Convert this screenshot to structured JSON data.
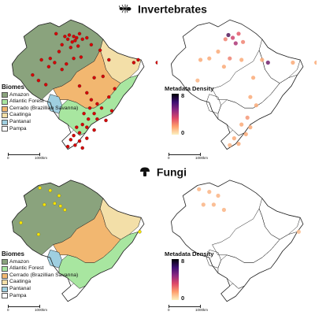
{
  "panels": [
    {
      "title": "Invertebrates",
      "icon": "ant-icon"
    },
    {
      "title": "Fungi",
      "icon": "mushroom-icon"
    }
  ],
  "biome_legend": {
    "title": "Biomes",
    "items": [
      {
        "label": "Amazon",
        "color": "#8aa37d"
      },
      {
        "label": "Atlantic Forest",
        "color": "#a8e6a0"
      },
      {
        "label": "Cerrado (Brazillian Savanna)",
        "color": "#f2b770"
      },
      {
        "label": "Caatinga",
        "color": "#f3dfa8"
      },
      {
        "label": "Pantanal",
        "color": "#9fcfe0"
      },
      {
        "label": "Pampa",
        "color": "#ffffff"
      }
    ]
  },
  "density_legend": {
    "title": "Metadata Density",
    "max": "8",
    "min": "0"
  },
  "scale_label": "1000km",
  "scale_zero": "0",
  "colors": {
    "point": "#d40000",
    "fungi_point": "#f5e400",
    "outline": "#222222"
  },
  "invertebrate_points": [
    [
      0.43,
      0.13
    ],
    [
      0.46,
      0.14
    ],
    [
      0.48,
      0.15
    ],
    [
      0.5,
      0.12
    ],
    [
      0.42,
      0.16
    ],
    [
      0.45,
      0.18
    ],
    [
      0.47,
      0.17
    ],
    [
      0.4,
      0.14
    ],
    [
      0.52,
      0.16
    ],
    [
      0.55,
      0.15
    ],
    [
      0.38,
      0.2
    ],
    [
      0.44,
      0.22
    ],
    [
      0.49,
      0.21
    ],
    [
      0.36,
      0.25
    ],
    [
      0.3,
      0.3
    ],
    [
      0.24,
      0.31
    ],
    [
      0.29,
      0.36
    ],
    [
      0.33,
      0.33
    ],
    [
      0.38,
      0.38
    ],
    [
      0.41,
      0.34
    ],
    [
      0.46,
      0.3
    ],
    [
      0.51,
      0.29
    ],
    [
      0.18,
      0.42
    ],
    [
      0.22,
      0.46
    ],
    [
      0.27,
      0.49
    ],
    [
      0.6,
      0.44
    ],
    [
      0.66,
      0.43
    ],
    [
      0.7,
      0.31
    ],
    [
      0.87,
      0.33
    ],
    [
      0.9,
      0.31
    ],
    [
      0.5,
      0.5
    ],
    [
      0.55,
      0.55
    ],
    [
      0.58,
      0.6
    ],
    [
      0.62,
      0.63
    ],
    [
      0.65,
      0.66
    ],
    [
      0.6,
      0.7
    ],
    [
      0.56,
      0.74
    ],
    [
      0.62,
      0.74
    ],
    [
      0.52,
      0.78
    ],
    [
      0.55,
      0.8
    ],
    [
      0.6,
      0.82
    ],
    [
      0.5,
      0.84
    ],
    [
      0.46,
      0.86
    ],
    [
      0.44,
      0.89
    ],
    [
      0.5,
      0.9
    ],
    [
      0.55,
      0.88
    ],
    [
      0.47,
      0.93
    ],
    [
      0.52,
      0.95
    ],
    [
      0.42,
      0.94
    ],
    [
      0.7,
      0.58
    ],
    [
      0.74,
      0.52
    ],
    [
      0.68,
      0.75
    ],
    [
      0.72,
      0.68
    ],
    [
      0.57,
      0.66
    ],
    [
      0.53,
      0.7
    ],
    [
      0.48,
      0.8
    ],
    [
      1.03,
      0.33
    ],
    [
      0.34,
      0.12
    ],
    [
      0.58,
      0.2
    ],
    [
      0.64,
      0.24
    ]
  ],
  "invertebrate_density": [
    [
      0.43,
      0.13,
      0.9
    ],
    [
      0.46,
      0.15,
      0.6
    ],
    [
      0.5,
      0.12,
      0.5
    ],
    [
      0.41,
      0.16,
      0.4
    ],
    [
      0.48,
      0.19,
      0.7
    ],
    [
      0.53,
      0.18,
      0.4
    ],
    [
      0.36,
      0.25,
      0.3
    ],
    [
      0.3,
      0.3,
      0.3
    ],
    [
      0.24,
      0.31,
      0.3
    ],
    [
      0.4,
      0.36,
      0.3
    ],
    [
      0.44,
      0.3,
      0.4
    ],
    [
      0.52,
      0.31,
      0.3
    ],
    [
      0.7,
      0.33,
      0.85
    ],
    [
      0.66,
      0.31,
      0.3
    ],
    [
      0.6,
      0.44,
      0.3
    ],
    [
      0.58,
      0.58,
      0.3
    ],
    [
      0.62,
      0.64,
      0.3
    ],
    [
      0.56,
      0.73,
      0.35
    ],
    [
      0.52,
      0.78,
      0.3
    ],
    [
      0.55,
      0.85,
      0.3
    ],
    [
      0.47,
      0.88,
      0.3
    ],
    [
      0.5,
      0.92,
      0.3
    ],
    [
      0.22,
      0.46,
      0.25
    ],
    [
      0.87,
      0.33,
      0.3
    ],
    [
      1.03,
      0.33,
      0.3
    ],
    [
      0.58,
      0.8,
      0.3
    ],
    [
      0.44,
      0.93,
      0.25
    ]
  ],
  "fungi_points": [
    [
      0.23,
      0.08
    ],
    [
      0.3,
      0.1
    ],
    [
      0.36,
      0.14
    ],
    [
      0.33,
      0.2
    ],
    [
      0.4,
      0.25
    ],
    [
      0.37,
      0.22
    ],
    [
      0.26,
      0.21
    ],
    [
      0.1,
      0.35
    ],
    [
      0.91,
      0.42
    ],
    [
      0.22,
      0.44
    ]
  ],
  "fungi_density": [
    [
      0.23,
      0.09,
      0.25
    ],
    [
      0.3,
      0.11,
      0.25
    ],
    [
      0.36,
      0.14,
      0.25
    ],
    [
      0.33,
      0.21,
      0.25
    ],
    [
      0.4,
      0.25,
      0.25
    ],
    [
      0.26,
      0.21,
      0.25
    ],
    [
      0.91,
      0.42,
      0.2
    ]
  ]
}
